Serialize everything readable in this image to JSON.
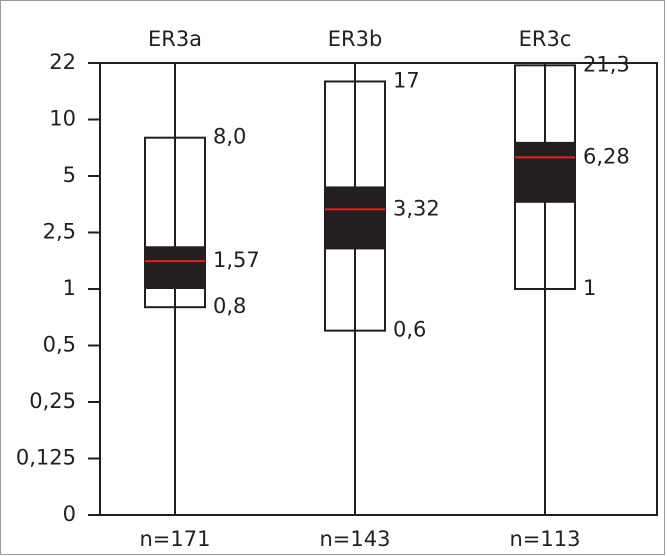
{
  "chart_data": {
    "type": "box",
    "categories": [
      "ER3a",
      "ER3b",
      "ER3c"
    ],
    "n_labels": [
      "n=171",
      "n=143",
      "n=113"
    ],
    "ylim": [
      0,
      22
    ],
    "yticks": [
      0,
      {
        "value": 0.125,
        "label": "0,125"
      },
      {
        "value": 0.25,
        "label": "0,25"
      },
      {
        "value": 0.5,
        "label": "0,5"
      },
      1,
      {
        "value": 2.5,
        "label": "2,5"
      },
      5,
      10,
      22
    ],
    "box_color": "#231f20",
    "median_color": "#e3201b",
    "boxes": [
      {
        "high": 8.0,
        "low": 0.8,
        "q1": 1.0,
        "q3": 2.0,
        "median": 1.57,
        "value_labels": {
          "high": "8,0",
          "low": "0,8",
          "median": "1,57"
        }
      },
      {
        "high": 17,
        "low": 0.6,
        "q1": 1.9,
        "q3": 4.4,
        "median": 3.32,
        "value_labels": {
          "low": "0,6",
          "median": "3,32"
        }
      },
      {
        "high": 21.3,
        "low": 1,
        "q1": 3.6,
        "q3": 7.6,
        "median": 6.28,
        "value_labels": {
          "high": "21,3",
          "median": "6,28"
        }
      }
    ]
  }
}
